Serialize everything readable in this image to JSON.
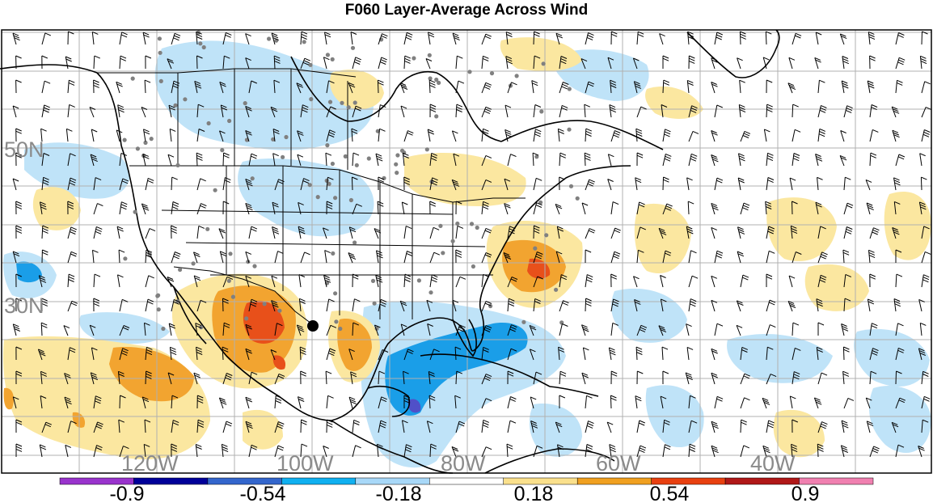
{
  "title": "F060 Layer-Average Across Wind",
  "map": {
    "lat_labels": [
      "50N",
      "30N"
    ],
    "lon_labels": [
      "120W",
      "100W",
      "80W",
      "60W",
      "40W"
    ],
    "colors": {
      "land_outline": "#000000",
      "grid": "#b0b0b0",
      "label": "#8a8a8a",
      "station": "#808080"
    }
  },
  "colorbar": {
    "tick_labels": [
      "-0.9",
      "-0.54",
      "-0.18",
      "0.18",
      "0.54",
      "0.9"
    ],
    "colors": [
      "#9933cc",
      "#000099",
      "#3366cc",
      "#10b0f0",
      "#a8d8f8",
      "#ffffff",
      "#fae08c",
      "#f0a020",
      "#e84010",
      "#b01818",
      "#f080b0"
    ]
  },
  "legend_colors": {
    "strong_neg": "#1a9ee8",
    "neg": "#bfe3f8",
    "pos": "#fbe7a0",
    "mid_pos": "#f2a430",
    "strong_pos": "#e8501a",
    "deep_neg": "#5050c8"
  }
}
